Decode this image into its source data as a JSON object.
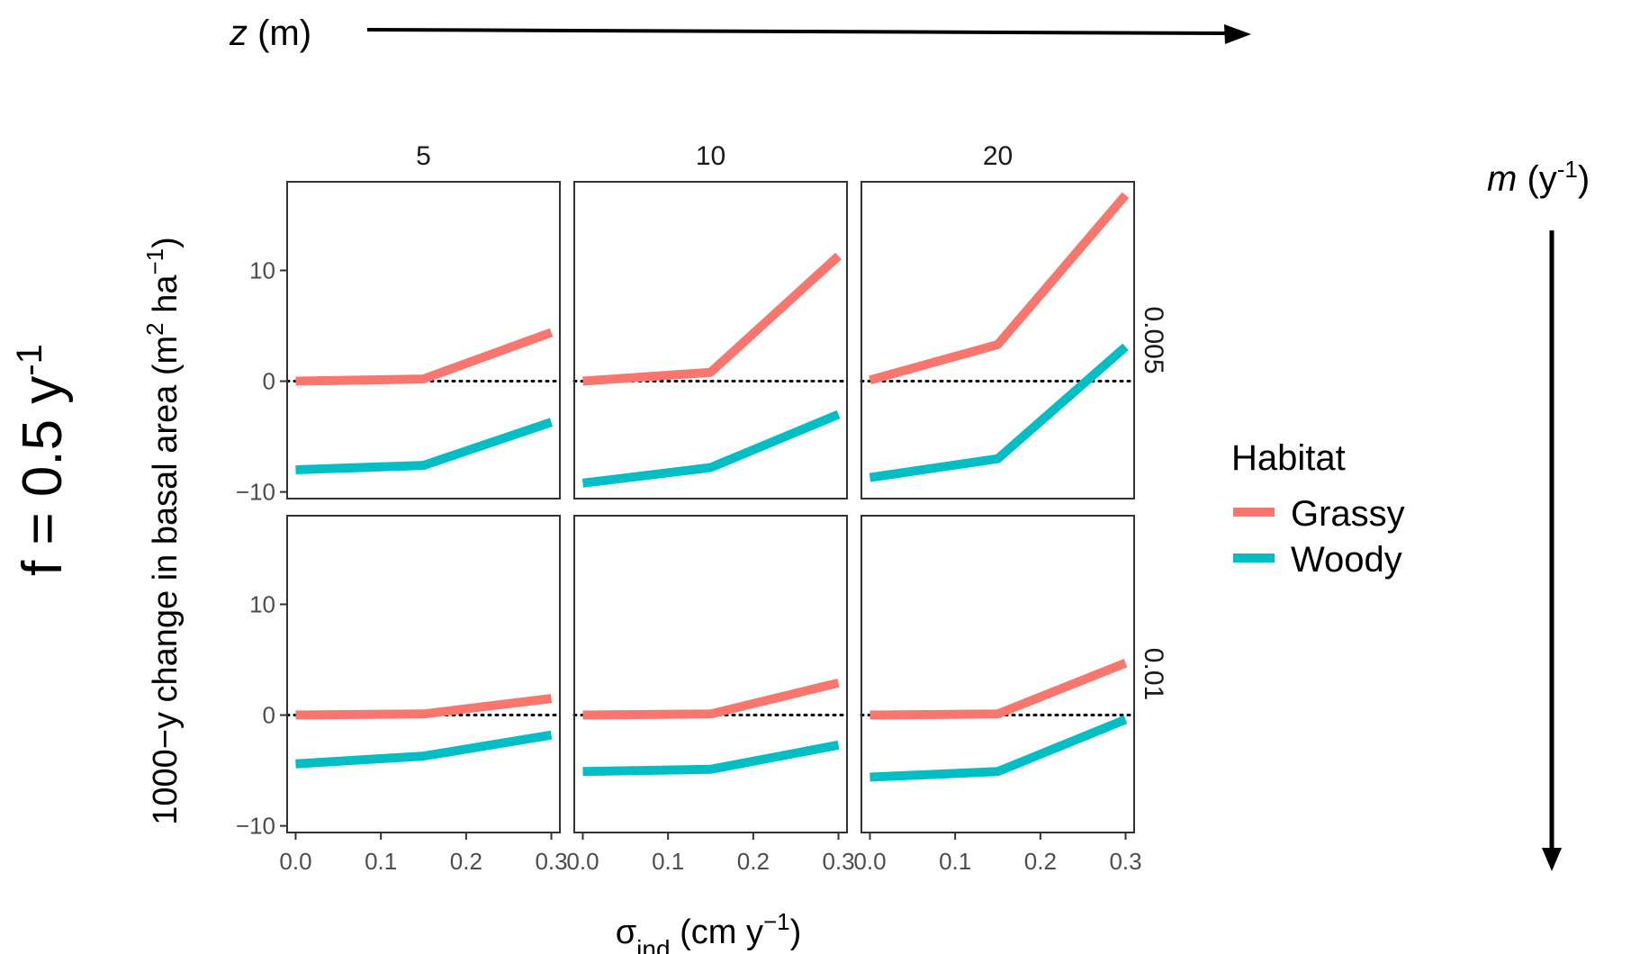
{
  "labels": {
    "z_label": "z",
    "z_unit": " (m)",
    "m_label": "m",
    "m_unit_open": " (y",
    "m_unit_sup": "-1",
    "m_unit_close": ")",
    "f_label": "f = 0.5 y",
    "f_sup": "-1",
    "ylabel_main": "1000−y change in basal area (m",
    "ylabel_sup1": "2",
    "ylabel_mid": " ha",
    "ylabel_sup2": "−1",
    "ylabel_close": ")",
    "xlabel_sigma": "σ",
    "xlabel_sub": "ind",
    "xlabel_unit": " (cm y",
    "xlabel_sup": "−1",
    "xlabel_close": ")"
  },
  "colors": {
    "grassy": "#F8766D",
    "woody": "#00BFC4",
    "panel_border": "#333333",
    "arrow": "#000000"
  },
  "chart_data": {
    "type": "line",
    "facet_cols": {
      "name": "z (m)",
      "values": [
        "5",
        "10",
        "20"
      ]
    },
    "facet_rows": {
      "name": "m (y-1)",
      "values": [
        "0.005",
        "0.01"
      ]
    },
    "x": [
      0.0,
      0.15,
      0.3
    ],
    "xlim": [
      -0.01,
      0.31
    ],
    "ylim": [
      -10.6,
      18
    ],
    "xticks": [
      0.0,
      0.1,
      0.2,
      0.3
    ],
    "xtick_labels": [
      "0.0",
      "0.1",
      "0.2",
      "0.3"
    ],
    "yticks": [
      -10,
      0,
      10
    ],
    "ytick_labels": [
      "−10",
      "0",
      "10"
    ],
    "reference_line": 0,
    "legend": {
      "title": "Habitat",
      "position": "right",
      "entries": [
        "Grassy",
        "Woody"
      ]
    },
    "panels": [
      {
        "row": "0.005",
        "col": "5",
        "grassy": [
          0.0,
          0.2,
          4.4
        ],
        "woody": [
          -8.0,
          -7.6,
          -3.7
        ]
      },
      {
        "row": "0.005",
        "col": "10",
        "grassy": [
          0.0,
          0.8,
          11.3
        ],
        "woody": [
          -9.2,
          -7.8,
          -3.0
        ]
      },
      {
        "row": "0.005",
        "col": "20",
        "grassy": [
          0.1,
          3.3,
          16.8
        ],
        "woody": [
          -8.7,
          -7.0,
          3.1
        ]
      },
      {
        "row": "0.01",
        "col": "5",
        "grassy": [
          0.0,
          0.1,
          1.5
        ],
        "woody": [
          -4.4,
          -3.7,
          -1.8
        ]
      },
      {
        "row": "0.01",
        "col": "10",
        "grassy": [
          0.0,
          0.1,
          2.9
        ],
        "woody": [
          -5.1,
          -4.9,
          -2.7
        ]
      },
      {
        "row": "0.01",
        "col": "20",
        "grassy": [
          0.0,
          0.1,
          4.7
        ],
        "woody": [
          -5.6,
          -5.1,
          -0.4
        ]
      }
    ]
  }
}
